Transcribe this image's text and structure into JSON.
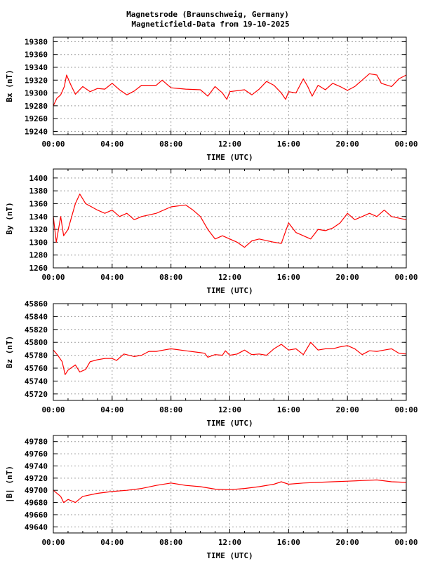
{
  "title_line1": "Magnetsrode (Braunschweig, Germany)",
  "title_line2": "Magneticfield-Data from 19-10-2025",
  "colors": {
    "series": "#ff0000",
    "grid": "#a0a0a0"
  },
  "chart_data": [
    {
      "type": "line",
      "ylabel": "Bx (nT)",
      "xlabel": "TIME (UTC)",
      "xticks": [
        "00:00",
        "04:00",
        "08:00",
        "12:00",
        "16:00",
        "20:00",
        "00:00"
      ],
      "xlim_hours": [
        0,
        24
      ],
      "yticks": [
        19240,
        19260,
        19280,
        19300,
        19320,
        19340,
        19360,
        19380
      ],
      "ylim": [
        19235,
        19387
      ],
      "grid": true,
      "x": [
        0,
        0.25,
        0.5,
        0.75,
        0.9,
        1.2,
        1.5,
        2,
        2.5,
        3,
        3.5,
        4,
        4.5,
        5,
        5.5,
        6,
        7,
        7.4,
        8,
        9,
        10,
        10.5,
        11,
        11.5,
        11.8,
        12,
        13,
        13.5,
        14,
        14.5,
        15,
        15.5,
        15.8,
        16,
        16.5,
        17,
        17.3,
        17.6,
        18,
        18.5,
        19,
        19.5,
        20,
        20.5,
        21,
        21.5,
        22,
        22.3,
        23,
        23.5,
        24
      ],
      "y": [
        19280,
        19292,
        19297,
        19310,
        19328,
        19312,
        19298,
        19310,
        19302,
        19307,
        19306,
        19315,
        19305,
        19297,
        19303,
        19312,
        19312,
        19320,
        19308,
        19306,
        19305,
        19295,
        19310,
        19300,
        19290,
        19302,
        19305,
        19297,
        19306,
        19318,
        19312,
        19300,
        19290,
        19302,
        19300,
        19322,
        19310,
        19295,
        19312,
        19305,
        19315,
        19310,
        19304,
        19310,
        19320,
        19330,
        19328,
        19315,
        19310,
        19322,
        19328
      ]
    },
    {
      "type": "line",
      "ylabel": "By (nT)",
      "xlabel": "TIME (UTC)",
      "xticks": [
        "00:00",
        "04:00",
        "08:00",
        "12:00",
        "16:00",
        "20:00",
        "00:00"
      ],
      "xlim_hours": [
        0,
        24
      ],
      "yticks": [
        1260,
        1280,
        1300,
        1320,
        1340,
        1360,
        1380,
        1400
      ],
      "ylim": [
        1260,
        1414
      ],
      "grid": true,
      "x": [
        0,
        0.2,
        0.5,
        0.7,
        1,
        1.5,
        1.8,
        2.2,
        3,
        3.5,
        4,
        4.5,
        5,
        5.5,
        6,
        7,
        8,
        9,
        9.5,
        10,
        10.5,
        11,
        11.5,
        12,
        12.5,
        13,
        13.5,
        14,
        15,
        15.5,
        16,
        16.5,
        17,
        17.5,
        18,
        18.5,
        19,
        19.5,
        20,
        20.5,
        21,
        21.5,
        22,
        22.5,
        23,
        24
      ],
      "y": [
        1340,
        1300,
        1340,
        1310,
        1320,
        1360,
        1375,
        1360,
        1350,
        1345,
        1350,
        1340,
        1345,
        1335,
        1340,
        1345,
        1355,
        1358,
        1350,
        1340,
        1320,
        1305,
        1310,
        1305,
        1300,
        1292,
        1302,
        1305,
        1300,
        1298,
        1330,
        1315,
        1310,
        1305,
        1320,
        1318,
        1322,
        1330,
        1345,
        1335,
        1340,
        1345,
        1340,
        1350,
        1340,
        1335
      ]
    },
    {
      "type": "line",
      "ylabel": "Bz (nT)",
      "xlabel": "TIME (UTC)",
      "xticks": [
        "00:00",
        "04:00",
        "08:00",
        "12:00",
        "16:00",
        "20:00",
        "00:00"
      ],
      "xlim_hours": [
        0,
        24
      ],
      "yticks": [
        45720,
        45740,
        45760,
        45780,
        45800,
        45820,
        45840,
        45860
      ],
      "ylim": [
        45710,
        45860
      ],
      "grid": true,
      "x": [
        0,
        0.3,
        0.6,
        0.8,
        1,
        1.5,
        1.8,
        2.2,
        2.5,
        3,
        3.5,
        4,
        4.3,
        4.8,
        5.5,
        6,
        6.5,
        7,
        7.5,
        8,
        9,
        10,
        10.3,
        10.5,
        11,
        11.5,
        11.7,
        12,
        12.5,
        13,
        13.5,
        14,
        14.5,
        15,
        15.5,
        16,
        16.5,
        17,
        17.5,
        18,
        18.5,
        19,
        19.5,
        20,
        20.5,
        21,
        21.5,
        22,
        22.5,
        23,
        23.5,
        24
      ],
      "y": [
        45788,
        45780,
        45770,
        45750,
        45757,
        45765,
        45754,
        45758,
        45770,
        45773,
        45775,
        45775,
        45772,
        45782,
        45778,
        45780,
        45786,
        45786,
        45788,
        45790,
        45787,
        45784,
        45783,
        45777,
        45781,
        45780,
        45787,
        45780,
        45782,
        45788,
        45781,
        45782,
        45780,
        45790,
        45797,
        45788,
        45790,
        45781,
        45800,
        45788,
        45790,
        45790,
        45793,
        45795,
        45790,
        45781,
        45787,
        45786,
        45788,
        45790,
        45783,
        45782
      ]
    },
    {
      "type": "line",
      "ylabel": "|B| (nT)",
      "xlabel": "TIME (UTC)",
      "xticks": [
        "00:00",
        "04:00",
        "08:00",
        "12:00",
        "16:00",
        "20:00",
        "00:00"
      ],
      "xlim_hours": [
        0,
        24
      ],
      "yticks": [
        49640,
        49660,
        49680,
        49700,
        49720,
        49740,
        49760,
        49780
      ],
      "ylim": [
        49630,
        49790
      ],
      "grid": true,
      "x": [
        0,
        0.5,
        0.7,
        1,
        1.5,
        2,
        3,
        4,
        5,
        6,
        7,
        8,
        9,
        10,
        11,
        12,
        13,
        14,
        15,
        15.5,
        16,
        17,
        18,
        19,
        20,
        21,
        22,
        23,
        24
      ],
      "y": [
        49700,
        49690,
        49680,
        49685,
        49680,
        49690,
        49695,
        49698,
        49700,
        49703,
        49708,
        49712,
        49708,
        49706,
        49702,
        49701,
        49703,
        49706,
        49710,
        49714,
        49710,
        49712,
        49713,
        49714,
        49715,
        49716,
        49717,
        49714,
        49713
      ]
    }
  ]
}
